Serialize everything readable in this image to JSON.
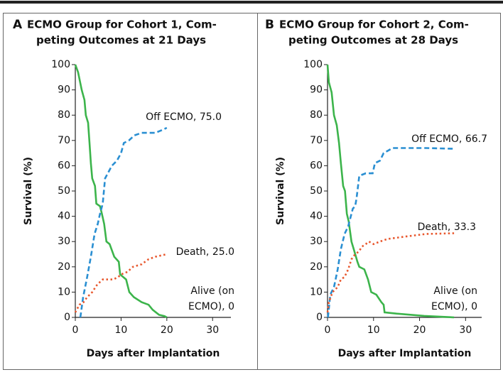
{
  "chart_data": [
    {
      "type": "line",
      "panel": "A",
      "title": [
        "ECMO Group for Cohort 1, Com-",
        "peting Outcomes at 21 Days"
      ],
      "y_label": "Survival (%)",
      "x_label": "Days after Implantation",
      "xlim": [
        0,
        34
      ],
      "ylim": [
        0,
        100
      ],
      "xticks": [
        0,
        10,
        20,
        30
      ],
      "yticks": [
        0,
        10,
        20,
        30,
        40,
        50,
        60,
        70,
        80,
        90,
        100
      ],
      "series": [
        {
          "label": [
            "Alive (on",
            "ECMO), 0"
          ],
          "color": "#3cb44b",
          "style": "solid",
          "x": [
            0,
            0.6,
            1.4,
            2,
            2.3,
            2.8,
            3.1,
            3.4,
            3.7,
            4.3,
            4.6,
            5.4,
            5.8,
            6.3,
            6.8,
            7.5,
            8.5,
            9.5,
            9.8,
            11.1,
            11.8,
            12.8,
            14.5,
            16,
            16.9,
            18.3,
            19.5,
            20
          ],
          "values": [
            100,
            97,
            90,
            86,
            80,
            77,
            69,
            61,
            55,
            52,
            45,
            44,
            41,
            37,
            30,
            29,
            24,
            22,
            17,
            15,
            10,
            8,
            6,
            5,
            3,
            1,
            0.5,
            0
          ]
        },
        {
          "label": [
            "Off ECMO, 75.0"
          ],
          "color": "#2a8fd2",
          "style": "dashed",
          "x": [
            1.1,
            1.7,
            2.6,
            3.4,
            4.2,
            4.9,
            5.4,
            6,
            6.5,
            7.1,
            8,
            9.1,
            10,
            10.6,
            11.7,
            12.9,
            14.5,
            16.9,
            17.5,
            18.8,
            20
          ],
          "values": [
            0,
            8,
            16,
            24,
            33,
            37,
            41,
            45,
            55,
            57,
            60,
            62,
            65,
            69,
            70,
            72,
            73,
            73,
            73,
            74,
            75
          ]
        },
        {
          "label": [
            "Death, 25.0"
          ],
          "color": "#e8572d",
          "style": "dotted",
          "x": [
            0,
            0.9,
            1.8,
            2.6,
            3.7,
            4.8,
            6,
            8.3,
            9.4,
            10,
            11.4,
            12.6,
            14.5,
            16,
            17.5,
            20
          ],
          "values": [
            2,
            5,
            6,
            8,
            10,
            13,
            15,
            15,
            16,
            17,
            18,
            20,
            21,
            23,
            24,
            25
          ]
        }
      ]
    },
    {
      "type": "line",
      "panel": "B",
      "title": [
        "ECMO Group for Cohort 2, Com-",
        "peting Outcomes at 28 Days"
      ],
      "y_label": "Survival (%)",
      "x_label": "Days after Implantation",
      "xlim": [
        0,
        33.5
      ],
      "ylim": [
        0,
        100
      ],
      "xticks": [
        0,
        10,
        20,
        30
      ],
      "yticks": [
        0,
        10,
        20,
        30,
        40,
        50,
        60,
        70,
        80,
        90,
        100
      ],
      "series": [
        {
          "label": [
            "Alive (on",
            "ECMO), 0"
          ],
          "color": "#3cb44b",
          "style": "solid",
          "x": [
            0,
            0.3,
            0.9,
            1.4,
            2,
            2.5,
            2.9,
            3.4,
            3.8,
            4.2,
            4.6,
            5.2,
            5.7,
            6.5,
            6.9,
            8,
            8.8,
            9.5,
            10.6,
            11.7,
            12.2,
            12.4,
            15,
            21,
            27.5
          ],
          "values": [
            100,
            93,
            89,
            80,
            76,
            69,
            61,
            52,
            50,
            41,
            38,
            30,
            27,
            22,
            20,
            19,
            15,
            10,
            9,
            6,
            5,
            2,
            1.5,
            0.6,
            0
          ]
        },
        {
          "label": [
            "Off ECMO, 66.7"
          ],
          "color": "#2a8fd2",
          "style": "dashed",
          "x": [
            0.1,
            0.6,
            1.4,
            2.2,
            2.9,
            3.7,
            4.5,
            5.2,
            5.5,
            6,
            6.3,
            6.9,
            8.3,
            9.8,
            10.3,
            11.4,
            12.2,
            13.2,
            14.1,
            21.4,
            27.5
          ],
          "values": [
            0,
            9,
            12,
            19,
            27,
            33,
            36,
            41,
            43,
            44,
            47,
            56,
            57,
            57,
            61,
            62,
            65,
            66,
            67,
            67,
            66.7
          ]
        },
        {
          "label": [
            "Death, 33.3"
          ],
          "color": "#e8572d",
          "style": "dotted",
          "x": [
            0,
            0.3,
            1.1,
            2.2,
            2.9,
            3.7,
            4.5,
            5.2,
            6,
            6.8,
            7.5,
            8.3,
            9,
            10,
            11.4,
            13,
            17,
            21.4,
            27.5
          ],
          "values": [
            2,
            6,
            10,
            12,
            15,
            16,
            19,
            23,
            25,
            26,
            28,
            29,
            30,
            29,
            30,
            31,
            32,
            33,
            33.3
          ]
        }
      ]
    }
  ]
}
